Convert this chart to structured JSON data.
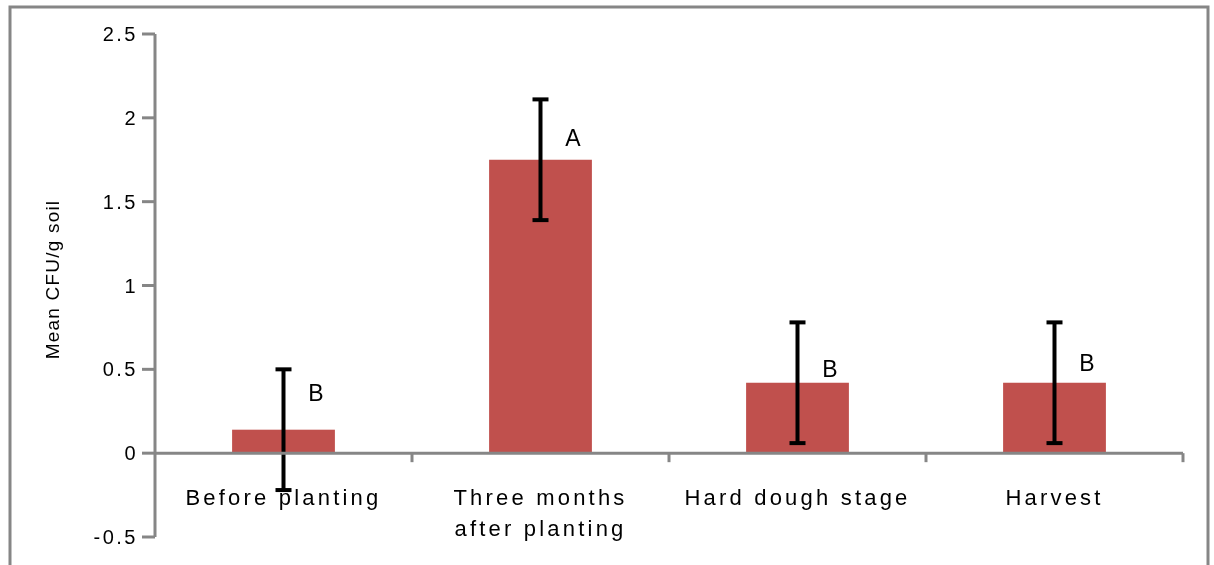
{
  "chart_data": {
    "type": "bar",
    "ylabel": "Mean CFU/g soil",
    "categories": [
      "Before planting",
      "Three months after planting",
      "Hard dough stage",
      "Harvest"
    ],
    "values": [
      0.14,
      1.75,
      0.42,
      0.42
    ],
    "color": "#c0504d",
    "errors": [
      0.36,
      0.36,
      0.36,
      0.36
    ],
    "ylim": [
      -0.5,
      2.5
    ],
    "yticks": [
      -0.5,
      0,
      0.5,
      1,
      1.5,
      2,
      2.5
    ],
    "annotations": [
      {
        "text": "B",
        "x": "Before planting",
        "y": 0.36
      },
      {
        "text": "A",
        "x": "Three months after planting",
        "y": 1.88
      },
      {
        "text": "B",
        "x": "Hard dough stage",
        "y": 0.5
      },
      {
        "text": "B",
        "x": "Harvest",
        "y": 0.54
      }
    ]
  }
}
